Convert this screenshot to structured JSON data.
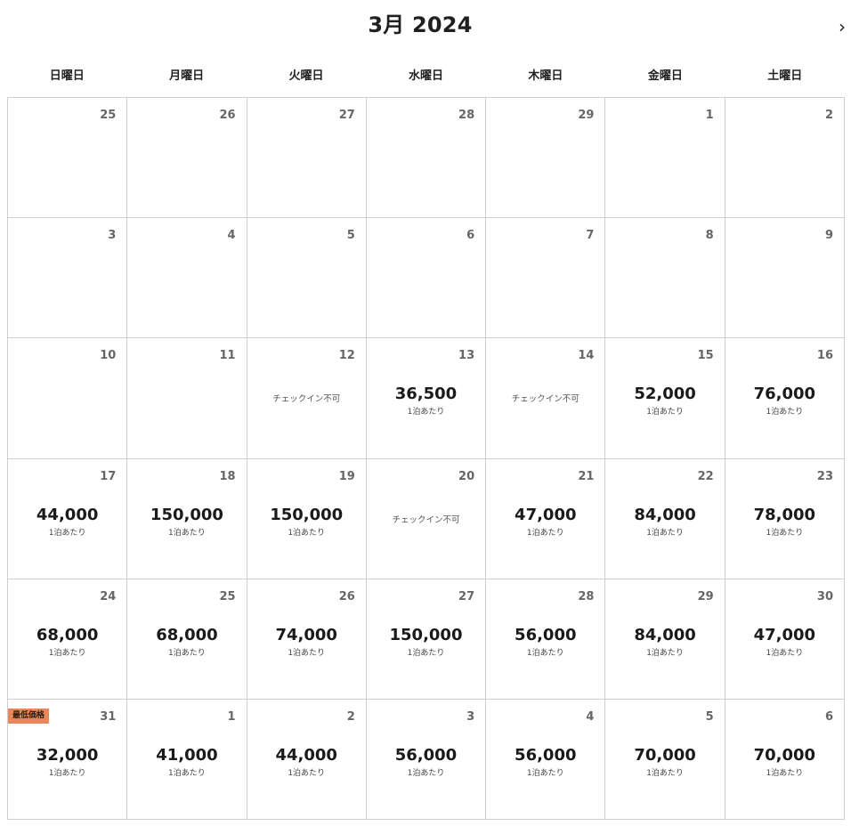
{
  "header": {
    "month_title": "3月 2024",
    "next_icon": "chevron-right-icon",
    "next_symbol": "›"
  },
  "weekdays": [
    "日曜日",
    "月曜日",
    "火曜日",
    "水曜日",
    "木曜日",
    "金曜日",
    "土曜日"
  ],
  "labels": {
    "per_night": "1泊あたり",
    "no_checkin": "チェックイン不可",
    "lowest_badge": "最低価格"
  },
  "colors": {
    "badge_bg": "#e8875a",
    "grid_border": "#cfcfcf"
  },
  "weeks": [
    [
      {
        "day": "25"
      },
      {
        "day": "26"
      },
      {
        "day": "27"
      },
      {
        "day": "28"
      },
      {
        "day": "29"
      },
      {
        "day": "1"
      },
      {
        "day": "2"
      }
    ],
    [
      {
        "day": "3"
      },
      {
        "day": "4"
      },
      {
        "day": "5"
      },
      {
        "day": "6"
      },
      {
        "day": "7"
      },
      {
        "day": "8"
      },
      {
        "day": "9"
      }
    ],
    [
      {
        "day": "10"
      },
      {
        "day": "11"
      },
      {
        "day": "12",
        "no_checkin": true
      },
      {
        "day": "13",
        "price": "36,500"
      },
      {
        "day": "14",
        "no_checkin": true
      },
      {
        "day": "15",
        "price": "52,000"
      },
      {
        "day": "16",
        "price": "76,000"
      }
    ],
    [
      {
        "day": "17",
        "price": "44,000"
      },
      {
        "day": "18",
        "price": "150,000"
      },
      {
        "day": "19",
        "price": "150,000"
      },
      {
        "day": "20",
        "no_checkin": true
      },
      {
        "day": "21",
        "price": "47,000"
      },
      {
        "day": "22",
        "price": "84,000"
      },
      {
        "day": "23",
        "price": "78,000"
      }
    ],
    [
      {
        "day": "24",
        "price": "68,000"
      },
      {
        "day": "25",
        "price": "68,000"
      },
      {
        "day": "26",
        "price": "74,000"
      },
      {
        "day": "27",
        "price": "150,000"
      },
      {
        "day": "28",
        "price": "56,000"
      },
      {
        "day": "29",
        "price": "84,000"
      },
      {
        "day": "30",
        "price": "47,000"
      }
    ],
    [
      {
        "day": "31",
        "price": "32,000",
        "badge": true
      },
      {
        "day": "1",
        "price": "41,000"
      },
      {
        "day": "2",
        "price": "44,000"
      },
      {
        "day": "3",
        "price": "56,000"
      },
      {
        "day": "4",
        "price": "56,000"
      },
      {
        "day": "5",
        "price": "70,000"
      },
      {
        "day": "6",
        "price": "70,000"
      }
    ]
  ]
}
